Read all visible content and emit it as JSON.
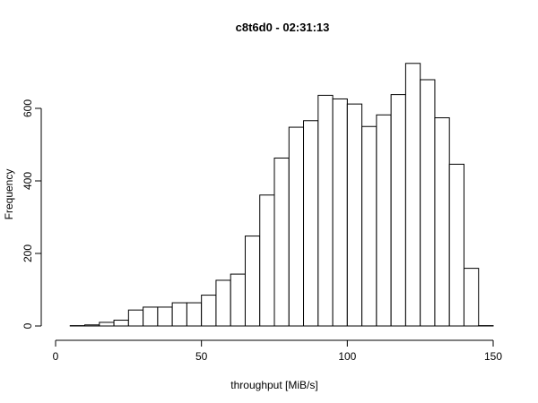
{
  "chart_data": {
    "type": "bar",
    "title": "c8t6d0 - 02:31:13",
    "xlabel": "throughput [MiB/s]",
    "ylabel": "Frequency",
    "xlim": [
      0,
      150
    ],
    "ylim": [
      0,
      700
    ],
    "x_ticks": [
      0,
      50,
      100,
      150
    ],
    "y_ticks": [
      0,
      200,
      400,
      600
    ],
    "x_tick_labels": [
      "0",
      "50",
      "100",
      "150"
    ],
    "y_tick_labels": [
      "0",
      "200",
      "400",
      "600"
    ],
    "bin_width": 5,
    "bin_edges": [
      5,
      10,
      15,
      20,
      25,
      30,
      35,
      40,
      45,
      50,
      55,
      60,
      65,
      70,
      75,
      80,
      85,
      90,
      95,
      100,
      105,
      110,
      115,
      120,
      125,
      130,
      135,
      140,
      145,
      150
    ],
    "values": [
      1,
      3,
      10,
      16,
      44,
      52,
      52,
      64,
      64,
      85,
      126,
      143,
      248,
      361,
      463,
      548,
      566,
      636,
      626,
      612,
      550,
      582,
      638,
      724,
      679,
      574,
      446,
      159,
      1
    ],
    "grid": false,
    "legend": "none",
    "colors": {
      "bar_fill": "#ffffff",
      "bar_stroke": "#000000",
      "axis": "#000000"
    }
  }
}
